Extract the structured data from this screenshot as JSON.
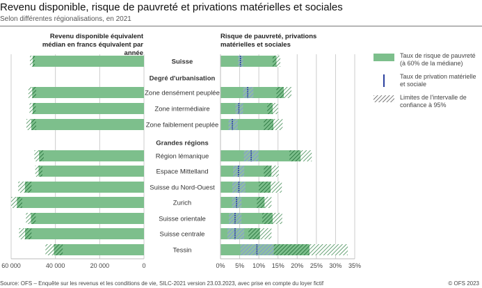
{
  "header": {
    "title": "Revenu disponible, risque de pauvreté et privations matérielles et sociales",
    "subtitle": "Selon différentes régionalisations, en 2021"
  },
  "footer": {
    "source": "Source: OFS – Enquête sur les revenus et les conditions de vie, SILC-2021 version 23.03.2023, avec prise en compte du loyer fictif",
    "copyright": "© OFS 2023"
  },
  "legend": {
    "poverty": "Taux de risque de pauvreté (à 60% de la médiane)",
    "deprivation": "Taux de privation matérielle et sociale",
    "ci": "Limites de l'intervalle de confiance à 95%"
  },
  "colors": {
    "bar": "#7dbf8c",
    "bar_dark_hatch": "#3f8a52",
    "deprivation": "#2a3f9e",
    "deprivation_ci": "#8aa6d6"
  },
  "chart_data": [
    {
      "type": "bar",
      "orientation": "horizontal",
      "direction": "right-to-left",
      "title": "Revenu disponible équivalent médian en francs équivalent par année",
      "xlim": [
        60000,
        0
      ],
      "ticks": [
        60000,
        40000,
        20000,
        0
      ],
      "tick_labels": [
        "60 000",
        "40 000",
        "20 000",
        "0"
      ],
      "grid": true,
      "categories": [
        "Suisse",
        "Zone densément peuplée",
        "Zone intermédiaire",
        "Zone faiblement peuplée",
        "Région lémanique",
        "Espace Mittelland",
        "Suisse du Nord-Ouest",
        "Zurich",
        "Suisse orientale",
        "Suisse centrale",
        "Tessin"
      ],
      "values": [
        50300,
        50500,
        50300,
        50900,
        47400,
        47600,
        53800,
        57400,
        51100,
        53700,
        40700
      ],
      "ci_low": [
        49300,
        48700,
        48900,
        48700,
        45300,
        45900,
        50800,
        55000,
        48900,
        50800,
        36700
      ],
      "ci_high": [
        51500,
        52200,
        51700,
        53100,
        49500,
        49100,
        56800,
        60000,
        53300,
        56400,
        44500
      ]
    },
    {
      "type": "bar",
      "orientation": "horizontal",
      "title": "Risque de pauvreté, privations matérielles et sociales",
      "xlim": [
        0,
        35
      ],
      "ticks": [
        0,
        5,
        10,
        15,
        20,
        25,
        30,
        35
      ],
      "tick_labels": [
        "0%",
        "5%",
        "10%",
        "15%",
        "20%",
        "25%",
        "30%",
        "35%"
      ],
      "grid": true,
      "categories": [
        "Suisse",
        "Zone densément peuplée",
        "Zone intermédiaire",
        "Zone faiblement peuplée",
        "Région lémanique",
        "Espace Mittelland",
        "Suisse du Nord-Ouest",
        "Zurich",
        "Suisse orientale",
        "Suisse centrale",
        "Tessin"
      ],
      "series": [
        {
          "name": "Taux de risque de pauvreté (à 60% de la médiane)",
          "values": [
            14.6,
            16.5,
            13.6,
            13.8,
            20.9,
            13.3,
            13.1,
            11.5,
            13.6,
            10.3,
            23.2
          ],
          "ci_low": [
            13.6,
            14.6,
            12.2,
            11.3,
            18.0,
            11.3,
            10.0,
            9.5,
            10.9,
            7.3,
            13.4
          ],
          "ci_high": [
            15.6,
            18.5,
            15.0,
            16.2,
            23.8,
            15.2,
            16.0,
            13.3,
            16.1,
            13.3,
            33.2
          ]
        },
        {
          "name": "Taux de privation matérielle et sociale",
          "values": [
            5.2,
            7.1,
            4.8,
            3.1,
            8.0,
            4.7,
            4.8,
            4.2,
            3.8,
            3.8,
            9.5
          ],
          "ci_low": [
            4.6,
            5.9,
            3.9,
            2.1,
            6.1,
            3.3,
            3.1,
            3.0,
            2.2,
            1.8,
            5.2
          ],
          "ci_high": [
            5.9,
            8.6,
            5.9,
            4.5,
            9.9,
            6.2,
            6.5,
            5.5,
            5.5,
            6.2,
            13.9
          ]
        }
      ]
    }
  ],
  "groups": [
    {
      "label": "Degré d'urbanisation",
      "before_index": 1
    },
    {
      "label": "Grandes régions",
      "before_index": 4
    }
  ]
}
